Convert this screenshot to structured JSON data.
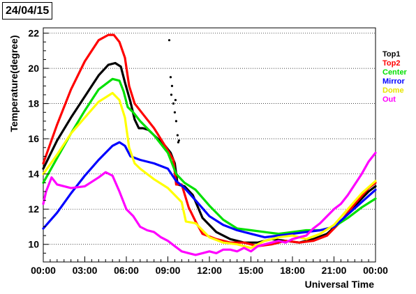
{
  "chart_data": {
    "type": "line",
    "title": "24/04/15",
    "xlabel": "Universal Time",
    "ylabel": "Temperature(degree)",
    "xlim": [
      0,
      24
    ],
    "ylim": [
      9,
      22.3
    ],
    "xticks": [
      0,
      3,
      6,
      9,
      12,
      15,
      18,
      21,
      24
    ],
    "xtick_labels": [
      "00:00",
      "03:00",
      "06:00",
      "09:00",
      "12:00",
      "15:00",
      "18:00",
      "21:00",
      "00:00"
    ],
    "yticks": [
      10,
      12,
      14,
      16,
      18,
      20,
      22
    ],
    "ytick_labels": [
      "10",
      "12",
      "14",
      "16",
      "18",
      "20",
      "22"
    ],
    "grid": "horizontal dotted",
    "legend_position": "right",
    "series": [
      {
        "name": "Top1",
        "color": "#000000",
        "x": [
          0,
          1,
          2,
          3,
          4,
          4.7,
          5.2,
          5.6,
          5.9,
          6.3,
          6.6,
          6.9,
          7.2,
          7.6,
          8,
          8.4,
          8.8,
          9.2,
          9.5,
          9.7,
          10.2,
          10.8,
          11.5,
          12.5,
          13.5,
          14.5,
          15.5,
          16.5,
          17.5,
          18.5,
          19.5,
          20.5,
          21.5,
          22.5,
          23.5,
          24
        ],
        "y": [
          14.3,
          15.9,
          17.2,
          18.4,
          19.6,
          20.2,
          20.3,
          20.1,
          19.2,
          18.1,
          17.1,
          16.6,
          16.6,
          16.5,
          16.2,
          15.9,
          15.6,
          15.2,
          14.6,
          13.4,
          13.3,
          12.8,
          11.5,
          10.7,
          10.3,
          10.1,
          10.1,
          10.3,
          10.2,
          10.1,
          10.3,
          10.6,
          11.3,
          12.2,
          13.0,
          13.3
        ]
      },
      {
        "name": "Top2",
        "color": "#ff0000",
        "x": [
          0,
          1,
          2,
          3,
          4,
          4.7,
          5.1,
          5.5,
          5.9,
          6.2,
          6.6,
          7.2,
          8,
          8.8,
          9.4,
          9.6,
          10,
          10.5,
          11,
          11.5,
          12.5,
          13.5,
          14.5,
          15.5,
          16.5,
          17.5,
          18.5,
          19.5,
          20.5,
          21.5,
          22.5,
          23.5,
          24
        ],
        "y": [
          14.6,
          16.8,
          18.8,
          20.4,
          21.6,
          21.9,
          21.9,
          21.5,
          20.6,
          19.0,
          18.0,
          17.4,
          16.6,
          15.6,
          14.8,
          13.4,
          13.4,
          12.1,
          11.3,
          10.6,
          10.3,
          10.1,
          10.1,
          9.9,
          10.0,
          10.2,
          10.1,
          10.2,
          10.5,
          11.3,
          12.3,
          13.2,
          13.5
        ]
      },
      {
        "name": "Center",
        "color": "#00e000",
        "x": [
          0,
          1,
          2,
          3,
          4,
          5,
          5.5,
          5.8,
          6.1,
          6.5,
          7,
          8,
          9,
          9.6,
          10.2,
          11,
          12,
          13,
          14,
          15,
          16,
          17,
          18,
          19,
          20,
          21,
          22,
          23,
          24
        ],
        "y": [
          13.5,
          14.9,
          16.3,
          17.6,
          18.8,
          19.4,
          19.3,
          18.7,
          17.8,
          17.5,
          17.0,
          16.2,
          15.2,
          14.0,
          13.5,
          13.1,
          12.2,
          11.4,
          10.9,
          10.8,
          10.7,
          10.6,
          10.7,
          10.8,
          10.8,
          11.0,
          11.5,
          12.1,
          12.6
        ]
      },
      {
        "name": "Mirror",
        "color": "#0000ff",
        "x": [
          0,
          1,
          2,
          3,
          4,
          5,
          5.5,
          5.9,
          6.3,
          7,
          8,
          9,
          9.6,
          10.2,
          11,
          12,
          13,
          14,
          15,
          16,
          17,
          18,
          19,
          20,
          21,
          22,
          23,
          24
        ],
        "y": [
          10.9,
          11.8,
          12.9,
          13.9,
          14.8,
          15.6,
          15.8,
          15.6,
          15.0,
          14.8,
          14.6,
          14.3,
          13.6,
          13.2,
          12.5,
          11.6,
          11.1,
          10.8,
          10.6,
          10.4,
          10.5,
          10.6,
          10.7,
          10.8,
          11.0,
          11.7,
          12.4,
          13.1
        ]
      },
      {
        "name": "Dome",
        "color": "#ffff00",
        "x": [
          0,
          1,
          2,
          3,
          4,
          5,
          5.5,
          5.9,
          6.2,
          6.6,
          7,
          8,
          9,
          10,
          10.3,
          11,
          12,
          13,
          14,
          15,
          16,
          17,
          18,
          19,
          20,
          21,
          22,
          23,
          24
        ],
        "y": [
          14.0,
          15.1,
          16.3,
          17.2,
          18.1,
          18.6,
          18.2,
          17.2,
          15.5,
          14.6,
          14.3,
          13.7,
          13.2,
          12.4,
          11.3,
          11.2,
          10.4,
          10.1,
          10.0,
          9.8,
          10.2,
          10.4,
          10.5,
          10.3,
          10.6,
          11.1,
          12.0,
          12.9,
          13.6
        ]
      },
      {
        "name": "Out",
        "color": "#ff00ff",
        "x": [
          0,
          0.2,
          0.6,
          1,
          2,
          3,
          4,
          4.5,
          5,
          5.5,
          6,
          6.5,
          7,
          7.5,
          8,
          8.5,
          9,
          9.5,
          10,
          10.5,
          11,
          11.5,
          12,
          12.5,
          13,
          13.5,
          14,
          14.5,
          15,
          15.5,
          16,
          16.5,
          17,
          17.5,
          18,
          18.5,
          19,
          19.5,
          20,
          20.5,
          21,
          21.5,
          22,
          22.5,
          23,
          23.5,
          24
        ],
        "y": [
          12.3,
          13.0,
          13.8,
          13.4,
          13.2,
          13.3,
          13.8,
          14.1,
          13.9,
          13.0,
          12.0,
          11.6,
          11.0,
          10.8,
          10.7,
          10.4,
          10.2,
          9.9,
          9.6,
          9.5,
          9.4,
          9.5,
          9.6,
          9.5,
          9.7,
          9.7,
          9.6,
          9.8,
          9.6,
          9.9,
          10.0,
          10.1,
          10.2,
          10.1,
          10.3,
          10.4,
          10.5,
          10.9,
          11.2,
          11.6,
          12.0,
          12.3,
          12.8,
          13.4,
          14.0,
          14.7,
          15.2
        ]
      },
      {
        "name": "",
        "color": "#000000",
        "kind": "points",
        "x": [
          9.1,
          9.2,
          9.25,
          9.3,
          9.4,
          9.5,
          9.55,
          9.6,
          9.7,
          9.75,
          9.8
        ],
        "y": [
          21.6,
          19.5,
          18.5,
          19.0,
          18.0,
          17.5,
          18.2,
          17.0,
          16.2,
          15.8,
          15.9
        ]
      }
    ]
  }
}
